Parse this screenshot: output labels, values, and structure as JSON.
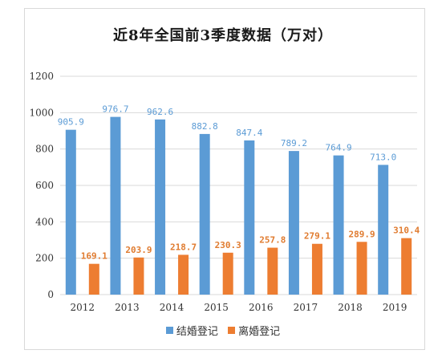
{
  "colors": {
    "marriage": "#5b9bd5",
    "divorce": "#ed7d31",
    "grid": "#d9d9d9",
    "axis_text": "#333333"
  },
  "chart_data": {
    "type": "bar",
    "title": "近8年全国前3季度数据（万对）",
    "categories": [
      "2012",
      "2013",
      "2014",
      "2015",
      "2016",
      "2017",
      "2018",
      "2019"
    ],
    "series": [
      {
        "name": "结婚登记",
        "values": [
          905.9,
          976.7,
          962.6,
          882.8,
          847.4,
          789.2,
          764.9,
          713.0
        ],
        "labels": [
          "905.9",
          "976.7",
          "962.6",
          "882.8",
          "847.4",
          "789.2",
          "764.9",
          "713.0"
        ]
      },
      {
        "name": "离婚登记",
        "values": [
          169.1,
          203.9,
          218.7,
          230.3,
          257.8,
          279.1,
          289.9,
          310.4
        ],
        "labels": [
          "169.1",
          "203.9",
          "218.7",
          "230.3",
          "257.8",
          "279.1",
          "289.9",
          "310.4"
        ]
      }
    ],
    "yticks": [
      "0",
      "200",
      "400",
      "600",
      "800",
      "1000",
      "1200"
    ],
    "ylim": [
      0,
      1200
    ],
    "grid": true,
    "legend_position": "bottom"
  }
}
